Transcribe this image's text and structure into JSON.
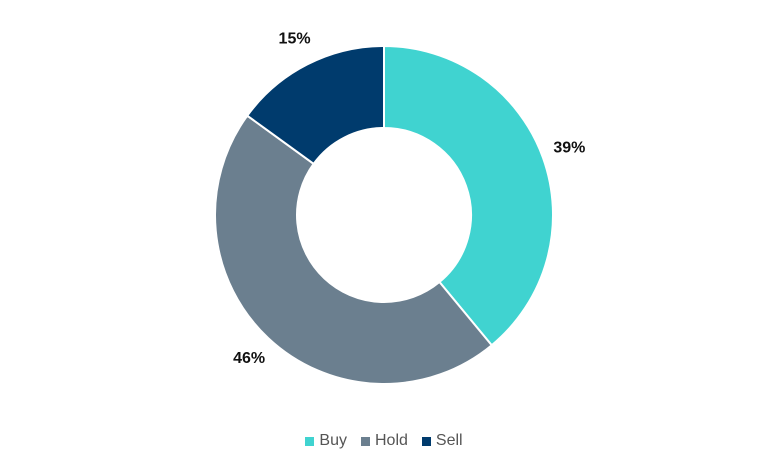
{
  "chart_data": {
    "type": "donut",
    "categories": [
      "Buy",
      "Hold",
      "Sell"
    ],
    "values": [
      39,
      46,
      15
    ],
    "value_labels": [
      "39%",
      "46%",
      "15%"
    ],
    "colors": [
      "#40d3d0",
      "#6b7f8f",
      "#003b6d"
    ],
    "legend": "bottom"
  }
}
